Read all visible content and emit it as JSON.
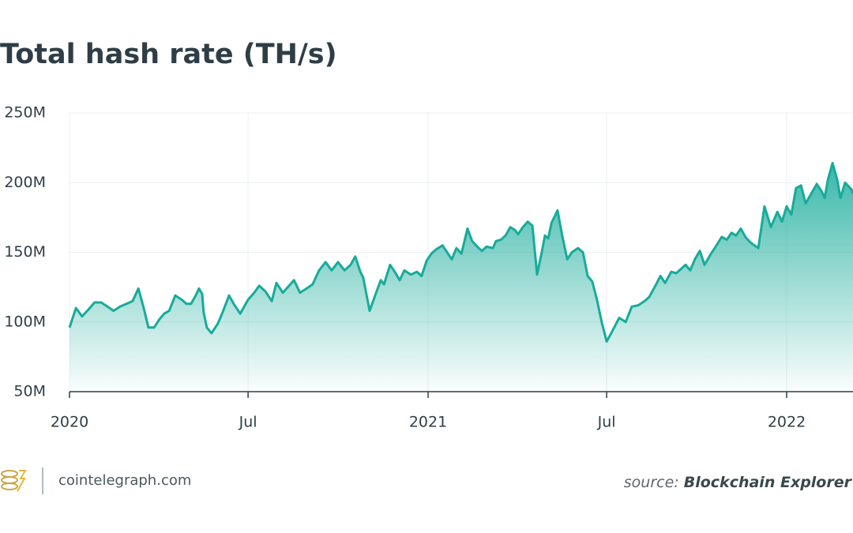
{
  "chart_data": {
    "type": "area",
    "title": "Total hash rate (TH/s)",
    "color": "#17ab9a",
    "grid": true,
    "x": [
      2020.0,
      2020.018,
      2020.035,
      2020.053,
      2020.07,
      2020.088,
      2020.106,
      2020.123,
      2020.141,
      2020.159,
      2020.176,
      2020.192,
      2020.207,
      2020.22,
      2020.236,
      2020.251,
      2020.264,
      2020.278,
      2020.295,
      2020.313,
      2020.326,
      2020.339,
      2020.352,
      2020.361,
      2020.37,
      2020.374,
      2020.383,
      2020.396,
      2020.414,
      2020.427,
      2020.445,
      2020.458,
      2020.476,
      2020.498,
      2020.515,
      2020.529,
      2020.546,
      2020.564,
      2020.577,
      2020.595,
      2020.612,
      2020.626,
      2020.643,
      2020.661,
      2020.678,
      2020.696,
      2020.714,
      2020.731,
      2020.749,
      2020.767,
      2020.784,
      2020.797,
      2020.811,
      2020.819,
      2020.837,
      2020.855,
      2020.868,
      2020.877,
      2020.894,
      2020.907,
      2020.921,
      2020.934,
      2020.952,
      2020.969,
      2020.982,
      2020.996,
      2021.009,
      2021.022,
      2021.04,
      2021.053,
      2021.066,
      2021.079,
      2021.093,
      2021.11,
      2021.123,
      2021.137,
      2021.15,
      2021.163,
      2021.181,
      2021.189,
      2021.203,
      2021.216,
      2021.229,
      2021.242,
      2021.251,
      2021.264,
      2021.278,
      2021.291,
      2021.304,
      2021.317,
      2021.326,
      2021.335,
      2021.344,
      2021.361,
      2021.374,
      2021.388,
      2021.401,
      2021.418,
      2021.432,
      2021.445,
      2021.458,
      2021.471,
      2021.485,
      2021.498,
      2021.515,
      2021.533,
      2021.551,
      2021.568,
      2021.586,
      2021.604,
      2021.617,
      2021.634,
      2021.648,
      2021.661,
      2021.678,
      2021.692,
      2021.705,
      2021.718,
      2021.731,
      2021.744,
      2021.758,
      2021.771,
      2021.789,
      2021.802,
      2021.819,
      2021.833,
      2021.846,
      2021.859,
      2021.872,
      2021.885,
      2021.899,
      2021.921,
      2021.938,
      2021.956,
      2021.974,
      2021.987,
      2022.0,
      2022.013,
      2022.026,
      2022.04,
      2022.053,
      2022.066,
      2022.084,
      2022.097,
      2022.106,
      2022.115,
      2022.128,
      2022.141,
      2022.15,
      2022.163,
      2022.181,
      2022.185
    ],
    "values": [
      96000000,
      110000000,
      104000000,
      109000000,
      114000000,
      114000000,
      111000000,
      108000000,
      111000000,
      113000000,
      115000000,
      124000000,
      110000000,
      96000000,
      96000000,
      102000000,
      106000000,
      108000000,
      119000000,
      116000000,
      113000000,
      113000000,
      119000000,
      124000000,
      120000000,
      107000000,
      96000000,
      92000000,
      99000000,
      107000000,
      119000000,
      113000000,
      106000000,
      116000000,
      121000000,
      126000000,
      122000000,
      115000000,
      128000000,
      121000000,
      126000000,
      130000000,
      121000000,
      124000000,
      127000000,
      137000000,
      143000000,
      137000000,
      143000000,
      137000000,
      141000000,
      147000000,
      136000000,
      132000000,
      108000000,
      121000000,
      130000000,
      127000000,
      141000000,
      136000000,
      130000000,
      137000000,
      134000000,
      136000000,
      133000000,
      144000000,
      149000000,
      152000000,
      155000000,
      150000000,
      145000000,
      153000000,
      149000000,
      167000000,
      158000000,
      154000000,
      151000000,
      154000000,
      153000000,
      158000000,
      159000000,
      162000000,
      168000000,
      166000000,
      163000000,
      168000000,
      172000000,
      169000000,
      134000000,
      150000000,
      162000000,
      160000000,
      171000000,
      180000000,
      162000000,
      145000000,
      150000000,
      153000000,
      150000000,
      133000000,
      129000000,
      116000000,
      99000000,
      86000000,
      94000000,
      103000000,
      100000000,
      111000000,
      112000000,
      115000000,
      118000000,
      126000000,
      133000000,
      128000000,
      136000000,
      135000000,
      138000000,
      141000000,
      137000000,
      145000000,
      151000000,
      141000000,
      149000000,
      154000000,
      161000000,
      159000000,
      164000000,
      162000000,
      167000000,
      161000000,
      157000000,
      153000000,
      183000000,
      168000000,
      179000000,
      172000000,
      183000000,
      177000000,
      196000000,
      198000000,
      185000000,
      191000000,
      199000000,
      194000000,
      189000000,
      202000000,
      214000000,
      202000000,
      189000000,
      200000000,
      195000000,
      192000000
    ],
    "xlim": [
      2020,
      2022.185
    ],
    "xticks": [
      2020,
      {
        "value": 2020.498,
        "label": "Jul"
      },
      2021,
      {
        "value": 2021.498,
        "label": "Jul"
      },
      2022
    ],
    "ylim": [
      50000000,
      250000000
    ],
    "yticks": [
      {
        "value": 50000000,
        "label": "50M"
      },
      {
        "value": 100000000,
        "label": "100M"
      },
      {
        "value": 150000000,
        "label": "150M"
      },
      {
        "value": 200000000,
        "label": "200M"
      },
      {
        "value": 250000000,
        "label": "250M"
      }
    ]
  },
  "footer": {
    "brand": "cointelegraph.com",
    "source_label": "source:",
    "source_name": "Blockchain Explorer"
  }
}
